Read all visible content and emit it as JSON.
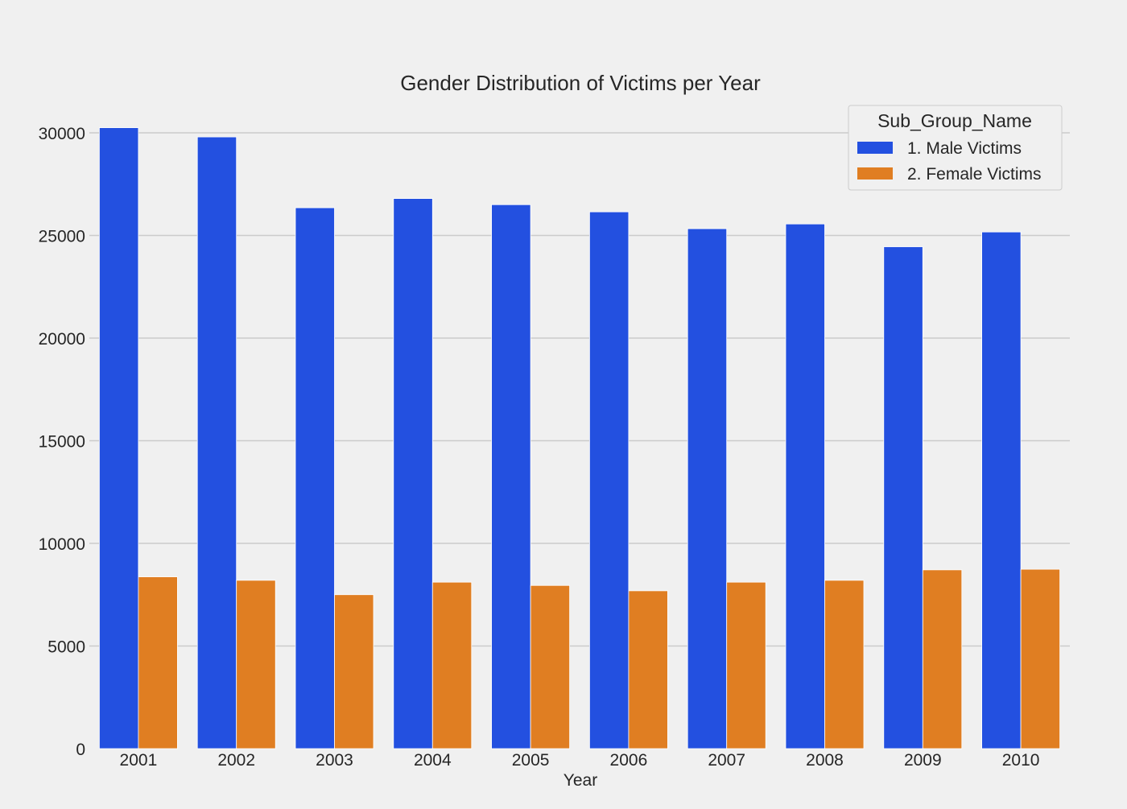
{
  "chart_data": {
    "type": "bar",
    "title": "Gender Distribution of Victims per Year",
    "xlabel": "Year",
    "ylabel": "",
    "categories": [
      "2001",
      "2002",
      "2003",
      "2004",
      "2005",
      "2006",
      "2007",
      "2008",
      "2009",
      "2010"
    ],
    "series": [
      {
        "name": "1. Male Victims",
        "color": "#2350e0",
        "values": [
          30250,
          29800,
          26350,
          26800,
          26500,
          26150,
          25330,
          25560,
          24450,
          25170
        ]
      },
      {
        "name": "2. Female Victims",
        "color": "#e07e22",
        "values": [
          8370,
          8200,
          7500,
          8110,
          7950,
          7690,
          8110,
          8200,
          8710,
          8740
        ]
      }
    ],
    "ylim": [
      0,
      32000
    ],
    "yticks": [
      0,
      5000,
      10000,
      15000,
      20000,
      25000,
      30000
    ],
    "grid": true,
    "legend": {
      "title": "Sub_Group_Name",
      "placement": "top-right"
    }
  }
}
